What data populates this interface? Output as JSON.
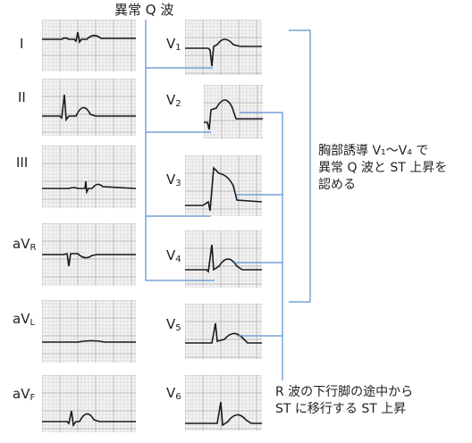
{
  "title": "異常 Q 波",
  "limb_leads": [
    {
      "label": "I"
    },
    {
      "label": "II"
    },
    {
      "label": "III"
    },
    {
      "label_main": "aV",
      "label_sub": "R"
    },
    {
      "label_main": "aV",
      "label_sub": "L"
    },
    {
      "label_main": "aV",
      "label_sub": "F"
    }
  ],
  "chest_leads": [
    {
      "label_main": "V",
      "label_sub": "1"
    },
    {
      "label_main": "V",
      "label_sub": "2"
    },
    {
      "label_main": "V",
      "label_sub": "3"
    },
    {
      "label_main": "V",
      "label_sub": "4"
    },
    {
      "label_main": "V",
      "label_sub": "5"
    },
    {
      "label_main": "V",
      "label_sub": "6"
    }
  ],
  "annotation_chest": {
    "line1": "胸部誘導 V₁〜V₄ で",
    "line2": "異常 Q 波と ST 上昇を",
    "line3": "認める"
  },
  "annotation_st": {
    "line1": "R 波の下行脚の途中から",
    "line2": "ST に移行する ST 上昇"
  },
  "colors": {
    "callout_line": "#5b8fd0",
    "grid_minor": "#c8c8c8",
    "grid_major": "#a8a8a8",
    "trace": "#1a1a1a"
  }
}
